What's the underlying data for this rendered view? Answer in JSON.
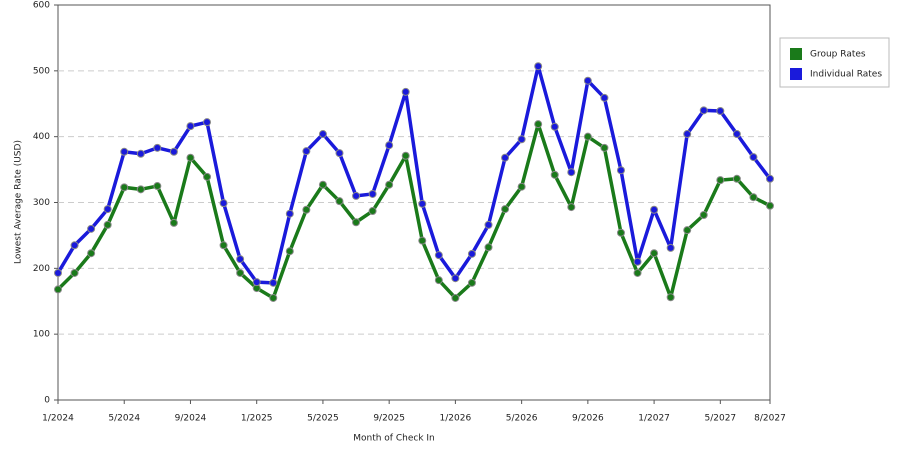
{
  "chart_data": {
    "type": "line",
    "x_label": "Month of Check In",
    "y_label": "Lowest Average Rate (USD)",
    "categories": [
      "1/2024",
      null,
      null,
      null,
      "5/2024",
      null,
      null,
      null,
      "9/2024",
      null,
      null,
      null,
      "1/2025",
      null,
      null,
      null,
      "5/2025",
      null,
      null,
      null,
      "9/2025",
      null,
      null,
      null,
      "1/2026",
      null,
      null,
      null,
      "5/2026",
      null,
      null,
      null,
      "9/2026",
      null,
      null,
      null,
      "1/2027",
      null,
      null,
      null,
      "5/2027",
      null,
      null,
      "8/2027"
    ],
    "series": [
      {
        "name": "Group Rates",
        "color": "#1a7a1a",
        "values": [
          168,
          193,
          223,
          266,
          323,
          320,
          325,
          269,
          368,
          339,
          235,
          193,
          170,
          155,
          226,
          289,
          327,
          302,
          270,
          287,
          327,
          371,
          242,
          182,
          155,
          178,
          232,
          290,
          324,
          419,
          342,
          293,
          400,
          383,
          254,
          193,
          223,
          156,
          258,
          281,
          334,
          336,
          308,
          295
        ]
      },
      {
        "name": "Individual Rates",
        "color": "#1a1adb",
        "values": [
          193,
          235,
          260,
          290,
          377,
          374,
          383,
          377,
          416,
          422,
          299,
          214,
          179,
          178,
          283,
          378,
          404,
          375,
          310,
          313,
          387,
          468,
          298,
          220,
          185,
          222,
          266,
          368,
          396,
          507,
          415,
          346,
          485,
          459,
          349,
          210,
          289,
          231,
          404,
          440,
          439,
          404,
          369,
          336
        ]
      }
    ],
    "ylim": [
      0,
      600
    ],
    "yticks": [
      0,
      100,
      200,
      300,
      400,
      500,
      600
    ],
    "grid": true,
    "legend": "right"
  }
}
